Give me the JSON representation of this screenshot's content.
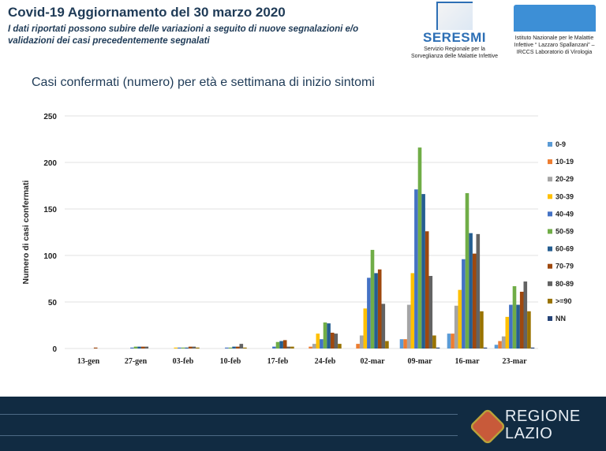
{
  "header": {
    "title": "Covid-19  Aggiornamento del 30 marzo 2020",
    "subtitle": "I dati riportati possono subire delle variazioni a seguito di nuove segnalazioni e/o validazioni dei casi precedentemente segnalati",
    "logo_seresmi": {
      "name": "SERESMI",
      "description": "Servizio Regionale per la Sorveglianza delle Malattie Infettive"
    },
    "logo_spallanzani": {
      "description": "Istituto Nazionale per le Malattie Infettive “ Lazzaro Spallanzani” – IRCCS Laboratorio di Virologia"
    }
  },
  "footer": {
    "logo_text_line1": "REGIONE",
    "logo_text_line2": "LAZIO"
  },
  "chart_data": {
    "type": "bar",
    "title": "Casi confermati (numero) per età e settimana di inizio sintomi",
    "ylabel": "Numero di casi confermati",
    "xlabel": "",
    "ylim": [
      0,
      250
    ],
    "yticks": [
      0,
      50,
      100,
      150,
      200,
      250
    ],
    "grid": true,
    "legend_position": "right",
    "categories": [
      "13-gen",
      "27-gen",
      "03-feb",
      "10-feb",
      "17-feb",
      "24-feb",
      "02-mar",
      "09-mar",
      "16-mar",
      "23-mar"
    ],
    "series": [
      {
        "name": "0-9",
        "color": "#5b9bd5",
        "values": [
          0,
          0,
          0,
          0,
          0,
          0,
          0,
          10,
          16,
          4
        ]
      },
      {
        "name": "10-19",
        "color": "#ed7d31",
        "values": [
          0,
          0,
          0,
          0,
          0,
          2,
          5,
          10,
          16,
          8
        ]
      },
      {
        "name": "20-29",
        "color": "#a5a5a5",
        "values": [
          0,
          0,
          0,
          0,
          0,
          5,
          14,
          47,
          46,
          13
        ]
      },
      {
        "name": "30-39",
        "color": "#ffc000",
        "values": [
          0,
          0,
          1,
          0,
          0,
          16,
          43,
          81,
          63,
          34
        ]
      },
      {
        "name": "40-49",
        "color": "#4472c4",
        "values": [
          0,
          1,
          1,
          1,
          2,
          10,
          76,
          171,
          96,
          47
        ]
      },
      {
        "name": "50-59",
        "color": "#70ad47",
        "values": [
          0,
          2,
          1,
          1,
          7,
          28,
          106,
          216,
          167,
          67
        ]
      },
      {
        "name": "60-69",
        "color": "#255e91",
        "values": [
          0,
          2,
          1,
          2,
          8,
          27,
          81,
          166,
          124,
          47
        ]
      },
      {
        "name": "70-79",
        "color": "#9e480e",
        "values": [
          1,
          2,
          2,
          2,
          9,
          17,
          85,
          126,
          102,
          61
        ]
      },
      {
        "name": "80-89",
        "color": "#636363",
        "values": [
          0,
          2,
          2,
          5,
          2,
          16,
          48,
          78,
          123,
          72
        ]
      },
      {
        "name": ">=90",
        "color": "#997300",
        "values": [
          0,
          0,
          1,
          1,
          2,
          5,
          8,
          14,
          40,
          40
        ]
      },
      {
        "name": "NN",
        "color": "#264478",
        "values": [
          0,
          0,
          0,
          0,
          0,
          0,
          0,
          1,
          1,
          1
        ]
      }
    ]
  }
}
